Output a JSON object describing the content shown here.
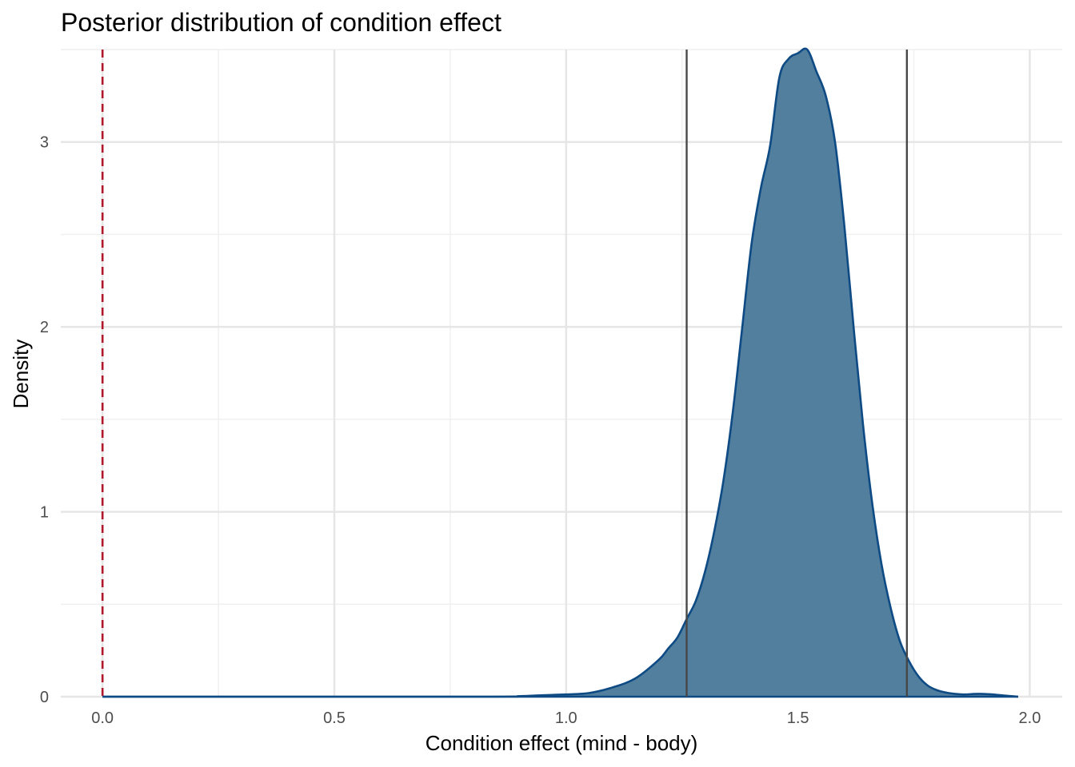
{
  "chart_data": {
    "type": "area",
    "title": "Posterior distribution of condition effect",
    "xlabel": "Condition effect (mind - body)",
    "ylabel": "Density",
    "xlim": [
      -0.09,
      2.07
    ],
    "ylim": [
      0,
      3.5
    ],
    "xticks": [
      0.0,
      0.5,
      1.0,
      1.5,
      2.0
    ],
    "xtick_labels": [
      "0.0",
      "0.5",
      "1.0",
      "1.5",
      "2.0"
    ],
    "yticks": [
      0,
      1,
      2,
      3
    ],
    "ytick_labels": [
      "0",
      "1",
      "2",
      "3"
    ],
    "grid": true,
    "legend": "none",
    "series": [
      {
        "x": [
          0.0,
          0.8,
          0.9,
          0.95,
          1.0,
          1.05,
          1.1,
          1.15,
          1.2,
          1.22,
          1.24,
          1.26,
          1.28,
          1.3,
          1.32,
          1.34,
          1.36,
          1.38,
          1.4,
          1.42,
          1.44,
          1.46,
          1.48,
          1.5,
          1.52,
          1.54,
          1.56,
          1.58,
          1.6,
          1.62,
          1.64,
          1.66,
          1.68,
          1.7,
          1.72,
          1.74,
          1.76,
          1.78,
          1.8,
          1.82,
          1.84,
          1.86,
          1.88,
          1.9,
          1.92,
          1.95,
          1.975
        ],
        "y": [
          0.0,
          0.0,
          0.003,
          0.008,
          0.012,
          0.02,
          0.05,
          0.1,
          0.2,
          0.26,
          0.32,
          0.42,
          0.52,
          0.68,
          0.9,
          1.18,
          1.55,
          2.0,
          2.45,
          2.75,
          2.98,
          3.35,
          3.45,
          3.48,
          3.5,
          3.38,
          3.25,
          3.0,
          2.55,
          2.0,
          1.48,
          1.05,
          0.72,
          0.48,
          0.3,
          0.19,
          0.11,
          0.06,
          0.035,
          0.022,
          0.015,
          0.012,
          0.015,
          0.015,
          0.012,
          0.005,
          0.0
        ],
        "fill": "#527f9e",
        "line": "#0e4a84"
      }
    ],
    "reference_lines": [
      {
        "x": 0.0,
        "style": "dashed",
        "color": "#b2182b"
      },
      {
        "x": 1.26,
        "style": "solid",
        "color": "#474747"
      },
      {
        "x": 1.735,
        "style": "solid",
        "color": "#474747"
      }
    ]
  }
}
